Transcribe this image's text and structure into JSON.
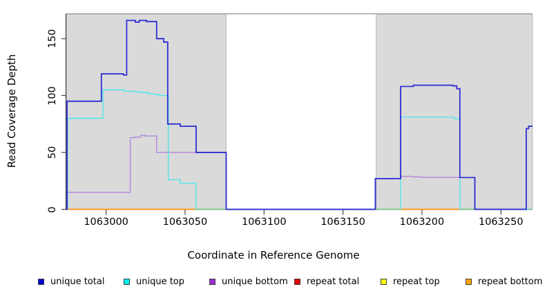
{
  "chart_data": {
    "type": "line",
    "subtype": "step-coverage",
    "title": "",
    "xlabel": "Coordinate in Reference Genome",
    "ylabel": "Read Coverage Depth",
    "xlim": [
      1062974.8,
      1063270
    ],
    "ylim": [
      0,
      173
    ],
    "x_ticks": [
      1063000,
      1063050,
      1063100,
      1063150,
      1063200,
      1063250
    ],
    "y_ticks": [
      0,
      50,
      100,
      150
    ],
    "grid": false,
    "legend_position": "bottom",
    "background_color": "#ffffff",
    "shaded_region_color": "#dadada",
    "shaded_region_border": "#ababab",
    "top_frame_color": "#8f8f8f",
    "axis_color": "#333333",
    "shaded_regions": [
      {
        "start": 1062974.8,
        "end": 1063076
      },
      {
        "start": 1063171,
        "end": 1063270
      }
    ],
    "series": [
      {
        "name": "repeat total",
        "legend_color": "#e60000",
        "line_color": "#e60000",
        "width": 1.3,
        "points": [
          [
            1062974.8,
            0
          ]
        ]
      },
      {
        "name": "repeat top",
        "legend_color": "#ffff00",
        "line_color": "#f0f000",
        "width": 1.3,
        "points": [
          [
            1062974.8,
            0
          ]
        ]
      },
      {
        "name": "repeat bottom",
        "legend_color": "#ffa500",
        "line_color": "#ff9414",
        "width": 1.7,
        "segments": [
          [
            1062974.8,
            1063057
          ],
          [
            1063186.5,
            1063224
          ]
        ],
        "segment_value": 0
      },
      {
        "name": "unique bottom",
        "legend_color": "#9b30d5",
        "line_color": "#b18adb",
        "width": 1.5,
        "points": [
          [
            1062974.8,
            0
          ],
          [
            1062975.6,
            15
          ],
          [
            1063015.3,
            63
          ],
          [
            1063018,
            63.5
          ],
          [
            1063022,
            65
          ],
          [
            1063024.5,
            64.5
          ],
          [
            1063032,
            50
          ],
          [
            1063076,
            0
          ],
          [
            1063170.5,
            27
          ],
          [
            1063186.5,
            29
          ],
          [
            1063194,
            28.5
          ],
          [
            1063200,
            28
          ],
          [
            1063233.5,
            0
          ]
        ]
      },
      {
        "name": "unique top",
        "legend_color": "#00f0f0",
        "line_color": "#4fe6e9",
        "width": 1.4,
        "points": [
          [
            1062974.8,
            0
          ],
          [
            1062975.6,
            80
          ],
          [
            1062998,
            105
          ],
          [
            1063011.5,
            104
          ],
          [
            1063015.5,
            103.5
          ],
          [
            1063019.5,
            103
          ],
          [
            1063023.5,
            102.5
          ],
          [
            1063027,
            101.5
          ],
          [
            1063030,
            101
          ],
          [
            1063033.5,
            100
          ],
          [
            1063039.4,
            26
          ],
          [
            1063047,
            23
          ],
          [
            1063057,
            0
          ],
          [
            1063186.5,
            81
          ],
          [
            1063220.5,
            79.5
          ],
          [
            1063224,
            0
          ]
        ]
      },
      {
        "name": "unique total",
        "legend_color": "#0000cd",
        "line_color": "#3232d4",
        "width": 1.7,
        "points": [
          [
            1062974.8,
            0
          ],
          [
            1062975.3,
            95
          ],
          [
            1062997,
            119
          ],
          [
            1063011,
            118
          ],
          [
            1063013,
            166
          ],
          [
            1063018.5,
            164.5
          ],
          [
            1063021,
            166
          ],
          [
            1063025.5,
            165
          ],
          [
            1063032,
            150
          ],
          [
            1063036.5,
            147
          ],
          [
            1063039,
            75
          ],
          [
            1063047,
            73
          ],
          [
            1063057,
            50
          ],
          [
            1063076,
            0
          ],
          [
            1063170.5,
            27
          ],
          [
            1063186.5,
            108
          ],
          [
            1063194.5,
            109
          ],
          [
            1063219.5,
            108.5
          ],
          [
            1063222,
            106
          ],
          [
            1063224,
            28
          ],
          [
            1063233.5,
            0
          ],
          [
            1063266,
            71
          ],
          [
            1063267.5,
            73
          ]
        ]
      }
    ],
    "zero_overlap_segments": {
      "color": "#79c37e",
      "width": 1.4,
      "note": "light-green zero-coverage line where cyan/yellow overlap",
      "segments": [
        [
          1063057,
          1063076
        ],
        [
          1063169.5,
          1063186.5
        ],
        [
          1063224,
          1063233.5
        ],
        [
          1063267.5,
          1063270
        ]
      ]
    }
  },
  "legend": {
    "items": [
      {
        "label": "unique total",
        "color": "#0000cd"
      },
      {
        "label": "unique top",
        "color": "#00f0f0"
      },
      {
        "label": "unique bottom",
        "color": "#9b30d5"
      },
      {
        "label": "repeat total",
        "color": "#e60000"
      },
      {
        "label": "repeat top",
        "color": "#ffff00"
      },
      {
        "label": "repeat bottom",
        "color": "#ffa500"
      }
    ]
  }
}
